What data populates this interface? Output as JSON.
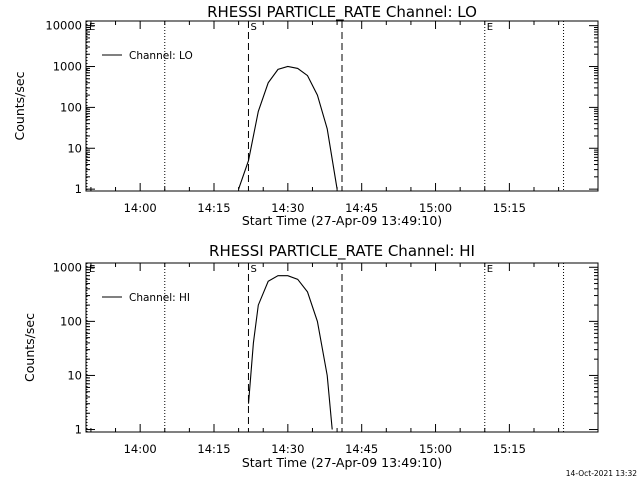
{
  "footer": {
    "timestamp": "14-Oct-2021 13:32"
  },
  "chart_data": [
    {
      "type": "line",
      "title": "RHESSI PARTICLE_RATE Channel: LO",
      "xlabel": "Start Time (27-Apr-09 13:49:10)",
      "ylabel": "Counts/sec",
      "y_scale": "log",
      "ylim": [
        0.9,
        13000
      ],
      "xlim": [
        "13:49",
        "15:33"
      ],
      "x_ticks": [
        "14:00",
        "14:15",
        "14:30",
        "14:45",
        "15:00",
        "15:15"
      ],
      "y_ticks": [
        "1",
        "10",
        "100",
        "1000",
        "10000"
      ],
      "legend": {
        "position": "top-left",
        "entries": [
          "Channel: LO"
        ]
      },
      "markers": [
        {
          "label": "E",
          "time": "13:49",
          "style": "dotted"
        },
        {
          "label": "",
          "time": "14:05",
          "style": "dotted"
        },
        {
          "label": "S",
          "time": "14:22",
          "style": "dashed"
        },
        {
          "label": "",
          "time": "14:41",
          "style": "dashed"
        },
        {
          "label": "E",
          "time": "15:10",
          "style": "dotted"
        },
        {
          "label": "",
          "time": "15:26",
          "style": "dotted"
        }
      ],
      "series": [
        {
          "name": "Channel: LO",
          "x": [
            "14:20",
            "14:22",
            "14:24",
            "14:26",
            "14:28",
            "14:30",
            "14:32",
            "14:34",
            "14:36",
            "14:38",
            "14:40"
          ],
          "y": [
            1,
            5,
            80,
            400,
            850,
            1000,
            900,
            600,
            200,
            30,
            1
          ]
        }
      ]
    },
    {
      "type": "line",
      "title": "RHESSI PARTICLE_RATE Channel: HI",
      "xlabel": "Start Time (27-Apr-09 13:49:10)",
      "ylabel": "Counts/sec",
      "y_scale": "log",
      "ylim": [
        0.9,
        1200
      ],
      "xlim": [
        "13:49",
        "15:33"
      ],
      "x_ticks": [
        "14:00",
        "14:15",
        "14:30",
        "14:45",
        "15:00",
        "15:15"
      ],
      "y_ticks": [
        "1",
        "10",
        "100",
        "1000"
      ],
      "legend": {
        "position": "top-left",
        "entries": [
          "Channel: HI"
        ]
      },
      "markers": [
        {
          "label": "E",
          "time": "13:49",
          "style": "dotted"
        },
        {
          "label": "",
          "time": "14:05",
          "style": "dotted"
        },
        {
          "label": "S",
          "time": "14:22",
          "style": "dashed"
        },
        {
          "label": "",
          "time": "14:41",
          "style": "dashed"
        },
        {
          "label": "E",
          "time": "15:10",
          "style": "dotted"
        },
        {
          "label": "",
          "time": "15:26",
          "style": "dotted"
        }
      ],
      "series": [
        {
          "name": "Channel: HI",
          "x": [
            "14:22",
            "14:23",
            "14:24",
            "14:26",
            "14:28",
            "14:30",
            "14:32",
            "14:34",
            "14:36",
            "14:38",
            "14:39"
          ],
          "y": [
            3,
            40,
            200,
            550,
            700,
            700,
            600,
            350,
            100,
            10,
            1
          ]
        }
      ]
    }
  ]
}
